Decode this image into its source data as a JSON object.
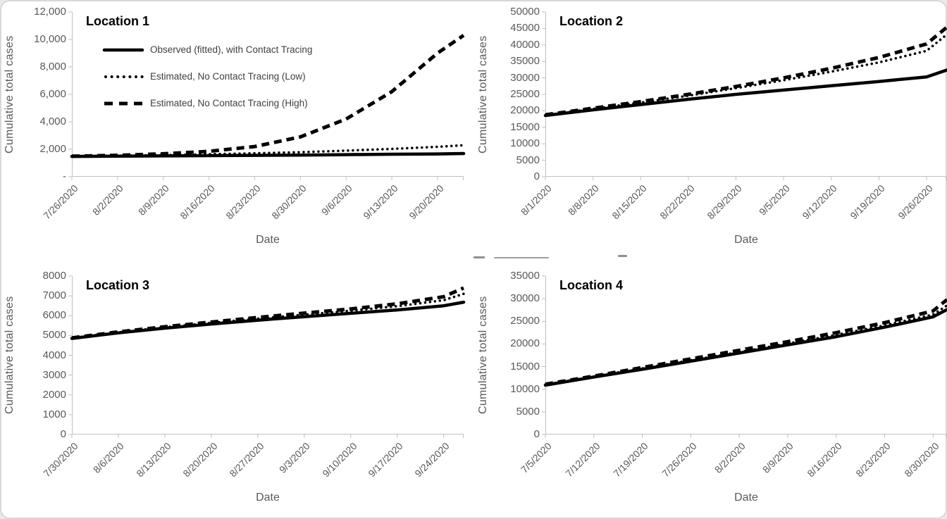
{
  "figure": {
    "background": "#ffffff",
    "card_border_color": "#d8d8d8",
    "series_line_color": "#000000",
    "axis_color": "#c0c0c0",
    "tick_label_color": "#595959",
    "chart_title_color": "#000000",
    "legend_text_color": "#404040"
  },
  "chart_data": [
    {
      "type": "line",
      "title": "Location 1",
      "y_title": "Cumulative total cases",
      "x_title": "Date",
      "ylim": [
        0,
        12000
      ],
      "y_max": 12000,
      "y_ticks": [
        "12,000",
        "10,000",
        "8,000",
        "6,000",
        "4,000",
        "2,000",
        "-"
      ],
      "x_ticks": [
        "7/26/2020",
        "8/2/2020",
        "8/9/2020",
        "8/16/2020",
        "8/23/2020",
        "8/30/2020",
        "9/6/2020",
        "9/13/2020",
        "9/20/2020"
      ],
      "tick_interval_days": 7,
      "total_days": 60,
      "grid": false,
      "legend_position": "inside-top-left",
      "show_legend": true,
      "series": [
        {
          "name": "Observed (fitted), with Contact Tracing",
          "style": "solid",
          "values": [
            1480,
            1500,
            1520,
            1540,
            1560,
            1580,
            1610,
            1640,
            1660,
            1690
          ]
        },
        {
          "name": "Estimated, No Contact Tracing (Low)",
          "style": "dotted",
          "values": [
            1490,
            1530,
            1580,
            1640,
            1710,
            1790,
            1900,
            2030,
            2180,
            2300
          ]
        },
        {
          "name": "Estimated, No Contact Tracing (High)",
          "style": "dashed",
          "values": [
            1500,
            1560,
            1670,
            1850,
            2200,
            2900,
            4200,
            6200,
            9000,
            10300
          ]
        }
      ]
    },
    {
      "type": "line",
      "title": "Location 2",
      "y_title": "Cumulative total cases",
      "x_title": "Date",
      "ylim": [
        0,
        50000
      ],
      "y_max": 50000,
      "y_ticks": [
        "50000",
        "45000",
        "40000",
        "35000",
        "30000",
        "25000",
        "20000",
        "15000",
        "10000",
        "5000",
        "0"
      ],
      "x_ticks": [
        "8/1/2020",
        "8/8/2020",
        "8/15/2020",
        "8/22/2020",
        "8/29/2020",
        "9/5/2020",
        "9/12/2020",
        "9/19/2020",
        "9/26/2020"
      ],
      "tick_interval_days": 7,
      "total_days": 59,
      "grid": false,
      "show_legend": false,
      "series": [
        {
          "name": "Observed (fitted), with Contact Tracing",
          "style": "solid",
          "values": [
            18600,
            20300,
            21900,
            23500,
            25000,
            26300,
            27600,
            28900,
            30300,
            32400
          ]
        },
        {
          "name": "Estimated, No Contact Tracing (Low)",
          "style": "dotted",
          "values": [
            18700,
            20600,
            22500,
            24600,
            26900,
            29300,
            31900,
            34700,
            38200,
            43200
          ]
        },
        {
          "name": "Estimated, No Contact Tracing (High)",
          "style": "dashed",
          "values": [
            18800,
            20800,
            22800,
            25000,
            27400,
            30000,
            32900,
            36200,
            40300,
            45400
          ]
        }
      ]
    },
    {
      "type": "line",
      "title": "Location 3",
      "y_title": "Cumulative total cases",
      "x_title": "Date",
      "ylim": [
        0,
        8000
      ],
      "y_max": 8000,
      "y_ticks": [
        "8000",
        "7000",
        "6000",
        "5000",
        "4000",
        "3000",
        "2000",
        "1000",
        "0"
      ],
      "x_ticks": [
        "7/30/2020",
        "8/6/2020",
        "8/13/2020",
        "8/20/2020",
        "8/27/2020",
        "9/3/2020",
        "9/10/2020",
        "9/17/2020",
        "9/24/2020"
      ],
      "tick_interval_days": 7,
      "total_days": 59,
      "grid": false,
      "show_legend": false,
      "series": [
        {
          "name": "Observed (fitted), with Contact Tracing",
          "style": "solid",
          "values": [
            4850,
            5130,
            5370,
            5580,
            5770,
            5950,
            6120,
            6290,
            6500,
            6680
          ]
        },
        {
          "name": "Estimated, No Contact Tracing (Low)",
          "style": "dotted",
          "values": [
            4870,
            5160,
            5410,
            5640,
            5850,
            6050,
            6250,
            6480,
            6780,
            7100
          ]
        },
        {
          "name": "Estimated, No Contact Tracing (High)",
          "style": "dashed",
          "values": [
            4880,
            5180,
            5440,
            5680,
            5910,
            6130,
            6340,
            6600,
            6960,
            7400
          ]
        }
      ]
    },
    {
      "type": "line",
      "title": "Location 4",
      "y_title": "Cumulative total cases",
      "x_title": "Date",
      "ylim": [
        0,
        35000
      ],
      "y_max": 35000,
      "y_ticks": [
        "35000",
        "30000",
        "25000",
        "20000",
        "15000",
        "10000",
        "5000",
        "0"
      ],
      "x_ticks": [
        "7/5/2020",
        "7/12/2020",
        "7/19/2020",
        "7/26/2020",
        "8/2/2020",
        "8/9/2020",
        "8/16/2020",
        "8/23/2020",
        "8/30/2020"
      ],
      "tick_interval_days": 7,
      "total_days": 58,
      "grid": false,
      "show_legend": false,
      "series": [
        {
          "name": "Observed (fitted), with Contact Tracing",
          "style": "solid",
          "values": [
            10900,
            12700,
            14400,
            16200,
            18000,
            19800,
            21600,
            23700,
            26000,
            27600
          ]
        },
        {
          "name": "Estimated, No Contact Tracing (Low)",
          "style": "dotted",
          "values": [
            11000,
            12800,
            14600,
            16400,
            18200,
            20100,
            22000,
            24100,
            26500,
            28500
          ]
        },
        {
          "name": "Estimated, No Contact Tracing (High)",
          "style": "dashed",
          "values": [
            11100,
            12900,
            14800,
            16700,
            18600,
            20500,
            22500,
            24700,
            27300,
            29800
          ]
        }
      ]
    }
  ]
}
